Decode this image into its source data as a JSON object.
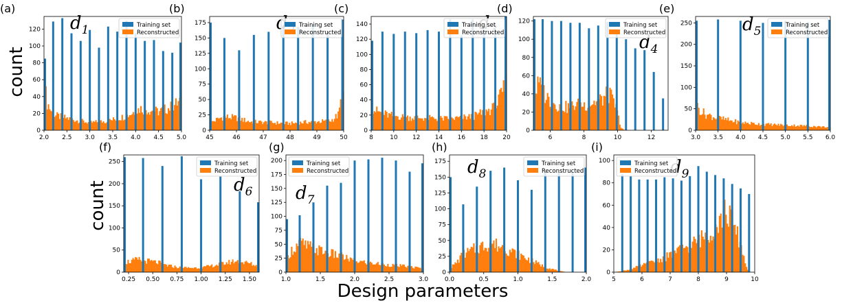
{
  "figure": {
    "xlabel": "Design parameters",
    "ylabel_top": "count",
    "ylabel_bottom": "count"
  },
  "colors": {
    "training": "#1f77b4",
    "reconstructed": "#ff7f0e"
  },
  "chart_data": [
    {
      "type": "bar",
      "panel": "(a)",
      "param": "d",
      "sub": "1",
      "legend": [
        "Training set",
        "Reconstructed"
      ],
      "legend_loc": "top-right",
      "xlim": [
        2.0,
        5.0
      ],
      "ylim": [
        0,
        135
      ],
      "xticks": [
        "2.0",
        "2.5",
        "3.0",
        "3.5",
        "4.0",
        "4.5",
        "5.0"
      ],
      "yticks": [
        "0",
        "20",
        "40",
        "60",
        "80",
        "100",
        "120"
      ],
      "training": {
        "x": [
          2.0,
          2.2,
          2.4,
          2.6,
          2.8,
          3.0,
          3.2,
          3.4,
          3.6,
          3.8,
          4.0,
          4.2,
          4.4,
          4.6,
          4.8,
          5.0
        ],
        "values": [
          85,
          129,
          133,
          115,
          106,
          119,
          98,
          123,
          117,
          130,
          115,
          106,
          107,
          94,
          92,
          104
        ]
      },
      "reconstructed": {
        "profile": [
          [
            2.0,
            75
          ],
          [
            2.05,
            35
          ],
          [
            2.2,
            18
          ],
          [
            2.6,
            13
          ],
          [
            3.0,
            9
          ],
          [
            3.4,
            11
          ],
          [
            3.8,
            17
          ],
          [
            4.1,
            26
          ],
          [
            4.5,
            22
          ],
          [
            4.8,
            28
          ],
          [
            4.95,
            34
          ],
          [
            5.0,
            37
          ]
        ]
      }
    },
    {
      "type": "bar",
      "panel": "(b)",
      "param": "d",
      "sub": "2",
      "legend": [
        "Training set",
        "Reconstructed"
      ],
      "legend_loc": "top-right",
      "xlim": [
        45,
        50
      ],
      "ylim": [
        0,
        185
      ],
      "xticks": [
        "45",
        "46",
        "47",
        "48",
        "49",
        "50"
      ],
      "yticks": [
        "0",
        "25",
        "50",
        "75",
        "100",
        "125",
        "150",
        "175"
      ],
      "training": {
        "x": [
          45.0,
          45.55,
          46.1,
          46.65,
          47.2,
          47.75,
          48.3,
          48.85,
          49.4,
          49.95
        ],
        "values": [
          175,
          150,
          130,
          155,
          160,
          170,
          168,
          172,
          160,
          180
        ]
      },
      "reconstructed": {
        "profile": [
          [
            45.0,
            12
          ],
          [
            45.5,
            22
          ],
          [
            46.0,
            20
          ],
          [
            46.5,
            14
          ],
          [
            47.0,
            13
          ],
          [
            47.5,
            12
          ],
          [
            48.0,
            11
          ],
          [
            48.5,
            13
          ],
          [
            49.0,
            14
          ],
          [
            49.5,
            15
          ],
          [
            49.8,
            25
          ],
          [
            49.95,
            58
          ]
        ]
      }
    },
    {
      "type": "bar",
      "panel": "(c)",
      "param": "d",
      "sub": "3",
      "legend": [
        "Training set",
        "Reconstructed"
      ],
      "legend_loc": "top-right",
      "xlim": [
        8,
        20
      ],
      "ylim": [
        0,
        150
      ],
      "xticks": [
        "8",
        "10",
        "12",
        "14",
        "16",
        "18",
        "20"
      ],
      "yticks": [
        "0",
        "20",
        "40",
        "60",
        "80",
        "100",
        "120",
        "140"
      ],
      "training": {
        "x": [
          8.0,
          9.0,
          10.0,
          11.0,
          12.0,
          13.0,
          14.0,
          15.0,
          16.0,
          17.0,
          18.0,
          19.0,
          20.0
        ],
        "values": [
          118,
          130,
          127,
          130,
          128,
          132,
          130,
          146,
          125,
          146,
          132,
          131,
          150
        ]
      },
      "reconstructed": {
        "profile": [
          [
            8.0,
            30
          ],
          [
            8.5,
            25
          ],
          [
            9.5,
            20
          ],
          [
            11,
            17
          ],
          [
            13,
            16
          ],
          [
            15,
            15
          ],
          [
            17,
            18
          ],
          [
            18,
            24
          ],
          [
            19,
            30
          ],
          [
            19.5,
            45
          ],
          [
            20.0,
            62
          ]
        ]
      }
    },
    {
      "type": "bar",
      "panel": "(d)",
      "param": "d",
      "sub": "4",
      "legend": [
        "Training set",
        "Reconstructed"
      ],
      "legend_loc": "top-right",
      "xlim": [
        5,
        13
      ],
      "ylim": [
        0,
        125
      ],
      "xticks": [
        "6",
        "8",
        "10",
        "12"
      ],
      "yticks": [
        "0",
        "20",
        "40",
        "60",
        "80",
        "100",
        "120"
      ],
      "training": {
        "x": [
          5.0,
          5.55,
          6.1,
          6.65,
          7.2,
          7.75,
          8.3,
          8.85,
          9.4,
          9.95,
          10.5,
          11.05,
          11.6,
          12.15,
          12.7
        ],
        "values": [
          122,
          122,
          120,
          120,
          118,
          118,
          112,
          115,
          119,
          107,
          100,
          90,
          88,
          64,
          35
        ]
      },
      "reconstructed": {
        "profile": [
          [
            5.0,
            38
          ],
          [
            5.3,
            50
          ],
          [
            5.6,
            42
          ],
          [
            6.0,
            32
          ],
          [
            6.5,
            27
          ],
          [
            7.0,
            25
          ],
          [
            7.5,
            28
          ],
          [
            8.0,
            28
          ],
          [
            8.5,
            30
          ],
          [
            9.0,
            33
          ],
          [
            9.5,
            40
          ],
          [
            9.9,
            25
          ],
          [
            10.2,
            3
          ],
          [
            10.4,
            0
          ],
          [
            13.0,
            0
          ]
        ]
      }
    },
    {
      "type": "bar",
      "panel": "(e)",
      "param": "d",
      "sub": "5",
      "legend": [
        "Training set",
        "Reconstructed"
      ],
      "legend_loc": "top-right",
      "xlim": [
        3.0,
        6.0
      ],
      "ylim": [
        0,
        265
      ],
      "xticks": [
        "3.0",
        "3.5",
        "4.0",
        "4.5",
        "5.0",
        "5.5",
        "6.0"
      ],
      "yticks": [
        "0",
        "50",
        "100",
        "150",
        "200",
        "250"
      ],
      "training": {
        "x": [
          3.0,
          3.5,
          4.0,
          4.5,
          5.0,
          5.5,
          6.0
        ],
        "values": [
          255,
          258,
          255,
          250,
          255,
          252,
          257
        ]
      },
      "reconstructed": {
        "profile": [
          [
            3.0,
            58
          ],
          [
            3.2,
            38
          ],
          [
            3.5,
            28
          ],
          [
            4.0,
            18
          ],
          [
            4.5,
            14
          ],
          [
            5.0,
            12
          ],
          [
            5.5,
            10
          ],
          [
            6.0,
            7
          ]
        ]
      }
    },
    {
      "type": "bar",
      "panel": "(f)",
      "param": "d",
      "sub": "6",
      "legend": [
        "Training set",
        "Reconstructed"
      ],
      "legend_loc": "top-right",
      "xlim": [
        0.2,
        1.6
      ],
      "ylim": [
        0,
        265
      ],
      "xticks": [
        "0.25",
        "0.50",
        "0.75",
        "1.00",
        "1.25",
        "1.50"
      ],
      "yticks": [
        "0",
        "50",
        "100",
        "150",
        "200",
        "250"
      ],
      "training": {
        "x": [
          0.2,
          0.4,
          0.6,
          0.8,
          1.0,
          1.2,
          1.4,
          1.6
        ],
        "values": [
          260,
          258,
          240,
          262,
          210,
          216,
          183,
          158
        ]
      },
      "reconstructed": {
        "profile": [
          [
            0.2,
            22
          ],
          [
            0.35,
            28
          ],
          [
            0.55,
            22
          ],
          [
            0.65,
            15
          ],
          [
            0.8,
            10
          ],
          [
            1.0,
            10
          ],
          [
            1.2,
            18
          ],
          [
            1.35,
            25
          ],
          [
            1.5,
            20
          ],
          [
            1.6,
            12
          ]
        ]
      }
    },
    {
      "type": "bar",
      "panel": "(g)",
      "param": "d",
      "sub": "7",
      "legend": [
        "Training set",
        "Reconstructed"
      ],
      "legend_loc": "top-left",
      "xlim": [
        1.0,
        3.0
      ],
      "ylim": [
        0,
        210
      ],
      "xticks": [
        "1.0",
        "1.5",
        "2.0",
        "2.5",
        "3.0"
      ],
      "yticks": [
        "0",
        "25",
        "50",
        "75",
        "100",
        "125",
        "150",
        "175",
        "200"
      ],
      "training": {
        "x": [
          1.0,
          1.2,
          1.4,
          1.6,
          1.8,
          2.0,
          2.2,
          2.4,
          2.6,
          2.8,
          3.0
        ],
        "values": [
          95,
          102,
          125,
          155,
          160,
          200,
          202,
          205,
          200,
          180,
          195
        ]
      },
      "reconstructed": {
        "profile": [
          [
            1.0,
            15
          ],
          [
            1.05,
            35
          ],
          [
            1.2,
            52
          ],
          [
            1.4,
            42
          ],
          [
            1.6,
            35
          ],
          [
            1.8,
            28
          ],
          [
            2.0,
            20
          ],
          [
            2.4,
            14
          ],
          [
            2.8,
            10
          ],
          [
            3.0,
            6
          ]
        ]
      }
    },
    {
      "type": "bar",
      "panel": "(h)",
      "param": "d",
      "sub": "8",
      "legend": [
        "Training set",
        "Reconstructed"
      ],
      "legend_loc": "top-right",
      "xlim": [
        0.0,
        2.0
      ],
      "ylim": [
        0,
        185
      ],
      "xticks": [
        "0.0",
        "0.5",
        "1.0",
        "1.5",
        "2.0"
      ],
      "yticks": [
        "0",
        "25",
        "50",
        "75",
        "100",
        "125",
        "150",
        "175"
      ],
      "training": {
        "x": [
          0.0,
          0.2,
          0.4,
          0.6,
          0.8,
          1.0,
          1.2,
          1.4,
          1.6,
          1.8,
          2.0
        ],
        "values": [
          150,
          107,
          135,
          160,
          165,
          145,
          130,
          158,
          158,
          160,
          165
        ]
      },
      "reconstructed": {
        "profile": [
          [
            0.0,
            6
          ],
          [
            0.1,
            15
          ],
          [
            0.2,
            28
          ],
          [
            0.4,
            38
          ],
          [
            0.6,
            46
          ],
          [
            0.8,
            38
          ],
          [
            1.0,
            28
          ],
          [
            1.2,
            18
          ],
          [
            1.4,
            8
          ],
          [
            1.6,
            2
          ],
          [
            1.7,
            0
          ],
          [
            2.0,
            0
          ]
        ]
      }
    },
    {
      "type": "bar",
      "panel": "(i)",
      "param": "d",
      "sub": "9",
      "legend": [
        "Training set",
        "Reconstructed"
      ],
      "legend_loc": "top-left",
      "xlim": [
        5,
        10
      ],
      "ylim": [
        0,
        105
      ],
      "xticks": [
        "5",
        "6",
        "7",
        "8",
        "9",
        "10"
      ],
      "yticks": [
        "0",
        "20",
        "40",
        "60",
        "80",
        "100"
      ],
      "training": {
        "x": [
          5.3,
          5.6,
          5.9,
          6.2,
          6.5,
          6.8,
          7.1,
          7.4,
          7.7,
          8.0,
          8.3,
          8.6,
          8.9,
          9.2,
          9.5,
          9.8
        ],
        "values": [
          88,
          86,
          83,
          83,
          83,
          85,
          84,
          82,
          86,
          95,
          90,
          87,
          84,
          79,
          75,
          70
        ]
      },
      "reconstructed": {
        "profile": [
          [
            5.0,
            0
          ],
          [
            5.5,
            2
          ],
          [
            6.0,
            6
          ],
          [
            6.5,
            10
          ],
          [
            7.0,
            15
          ],
          [
            7.5,
            22
          ],
          [
            8.0,
            28
          ],
          [
            8.5,
            38
          ],
          [
            8.8,
            48
          ],
          [
            9.0,
            55
          ],
          [
            9.2,
            45
          ],
          [
            9.5,
            25
          ],
          [
            9.7,
            5
          ],
          [
            9.8,
            0
          ],
          [
            10.0,
            0
          ]
        ]
      }
    }
  ]
}
